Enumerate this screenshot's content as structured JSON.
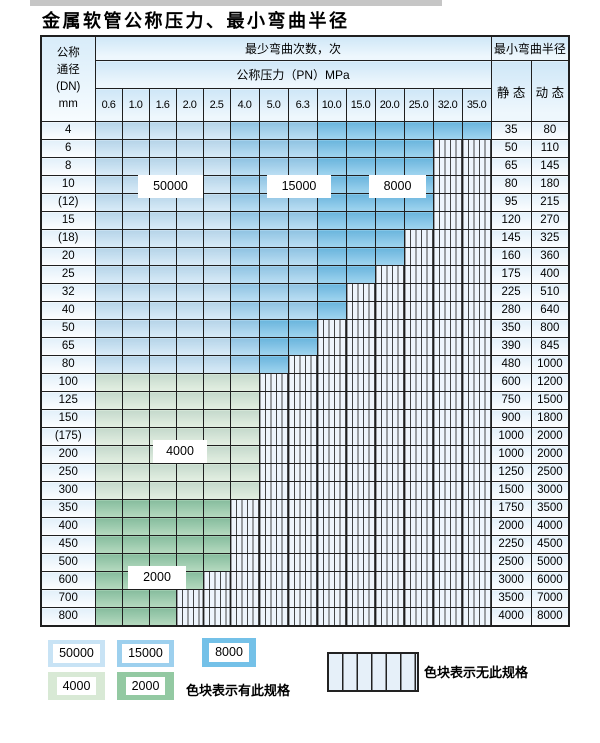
{
  "title": "金属软管公称压力、最小弯曲半径",
  "table": {
    "dn_header_lines": [
      "公称",
      "通径",
      "(DN)",
      "mm"
    ],
    "bend_cycles_header": "最少弯曲次数，次",
    "pressure_header": "公称压力（PN）MPa",
    "radius_header": "最小弯曲半径",
    "static_header": "静 态",
    "dynamic_header": "动 态",
    "pressure_columns": [
      "0.6",
      "1.0",
      "1.6",
      "2.0",
      "2.5",
      "4.0",
      "5.0",
      "6.3",
      "10.0",
      "15.0",
      "20.0",
      "25.0",
      "32.0",
      "35.0"
    ],
    "rows": [
      {
        "dn": "4",
        "cells": "LLLLLMMMDDDDDD",
        "static": "35",
        "dynamic": "80"
      },
      {
        "dn": "6",
        "cells": "LLLLLMMMDDDDXX",
        "static": "50",
        "dynamic": "110"
      },
      {
        "dn": "8",
        "cells": "LLLLLMMMDDDDXX",
        "static": "65",
        "dynamic": "145"
      },
      {
        "dn": "10",
        "cells": "LLLLLMMMDDDDXX",
        "static": "80",
        "dynamic": "180"
      },
      {
        "dn": "(12)",
        "cells": "LLLLLMMMDDDDXX",
        "static": "95",
        "dynamic": "215"
      },
      {
        "dn": "15",
        "cells": "LLLLLMMMDDDDXX",
        "static": "120",
        "dynamic": "270"
      },
      {
        "dn": "(18)",
        "cells": "LLLLLMMMDDDXXX",
        "static": "145",
        "dynamic": "325"
      },
      {
        "dn": "20",
        "cells": "LLLLLMMMDDDXXX",
        "static": "160",
        "dynamic": "360"
      },
      {
        "dn": "25",
        "cells": "LLLLLMMMDDXXXX",
        "static": "175",
        "dynamic": "400"
      },
      {
        "dn": "32",
        "cells": "LLLLLMMMDXXXXX",
        "static": "225",
        "dynamic": "510"
      },
      {
        "dn": "40",
        "cells": "LLLLLMMMDXXXXX",
        "static": "280",
        "dynamic": "640"
      },
      {
        "dn": "50",
        "cells": "LLLLLMDDXXXXXX",
        "static": "350",
        "dynamic": "800"
      },
      {
        "dn": "65",
        "cells": "LLLLLMDDXXXXXX",
        "static": "390",
        "dynamic": "845"
      },
      {
        "dn": "80",
        "cells": "LLLLLMDXXXXXXX",
        "static": "480",
        "dynamic": "1000"
      },
      {
        "dn": "100",
        "cells": "GGGGGGXXXXXXXX",
        "static": "600",
        "dynamic": "1200"
      },
      {
        "dn": "125",
        "cells": "GGGGGGXXXXXXXX",
        "static": "750",
        "dynamic": "1500"
      },
      {
        "dn": "150",
        "cells": "GGGGGGXXXXXXXX",
        "static": "900",
        "dynamic": "1800"
      },
      {
        "dn": "(175)",
        "cells": "GGGGGGXXXXXXXX",
        "static": "1000",
        "dynamic": "2000"
      },
      {
        "dn": "200",
        "cells": "GGGGGGXXXXXXXX",
        "static": "1000",
        "dynamic": "2000"
      },
      {
        "dn": "250",
        "cells": "GGGGGGXXXXXXXX",
        "static": "1250",
        "dynamic": "2500"
      },
      {
        "dn": "300",
        "cells": "GGGGGGXXXXXXXX",
        "static": "1500",
        "dynamic": "3000"
      },
      {
        "dn": "350",
        "cells": "gggggXXXXXXXXX",
        "static": "1750",
        "dynamic": "3500"
      },
      {
        "dn": "400",
        "cells": "gggggXXXXXXXXX",
        "static": "2000",
        "dynamic": "4000"
      },
      {
        "dn": "450",
        "cells": "gggggXXXXXXXXX",
        "static": "2250",
        "dynamic": "4500"
      },
      {
        "dn": "500",
        "cells": "gggggXXXXXXXXX",
        "static": "2500",
        "dynamic": "5000"
      },
      {
        "dn": "600",
        "cells": "ggggXXXXXXXXXX",
        "static": "3000",
        "dynamic": "6000"
      },
      {
        "dn": "700",
        "cells": "gggXXXXXXXXXXX",
        "static": "3500",
        "dynamic": "7000"
      },
      {
        "dn": "800",
        "cells": "gggXXXXXXXXXXX",
        "static": "4000",
        "dynamic": "8000"
      }
    ]
  },
  "region_labels": [
    {
      "text": "50000"
    },
    {
      "text": "15000"
    },
    {
      "text": "8000"
    },
    {
      "text": "4000"
    },
    {
      "text": "2000"
    }
  ],
  "legend": {
    "swatches": [
      {
        "label": "50000",
        "shade": "L"
      },
      {
        "label": "15000",
        "shade": "M"
      },
      {
        "label": "8000",
        "shade": "D"
      },
      {
        "label": "4000",
        "shade": "G"
      },
      {
        "label": "2000",
        "shade": "g"
      }
    ],
    "has_spec_note": "色块表示有此规格",
    "no_spec_note": "色块表示无此规格"
  },
  "colors": {
    "L": "#c8e3f5",
    "M": "#9dd0ee",
    "D": "#74c1e8",
    "G": "#d8e9d5",
    "g": "#93c9a2",
    "X": "#eef5fc",
    "grid": "#1f1f1f"
  }
}
